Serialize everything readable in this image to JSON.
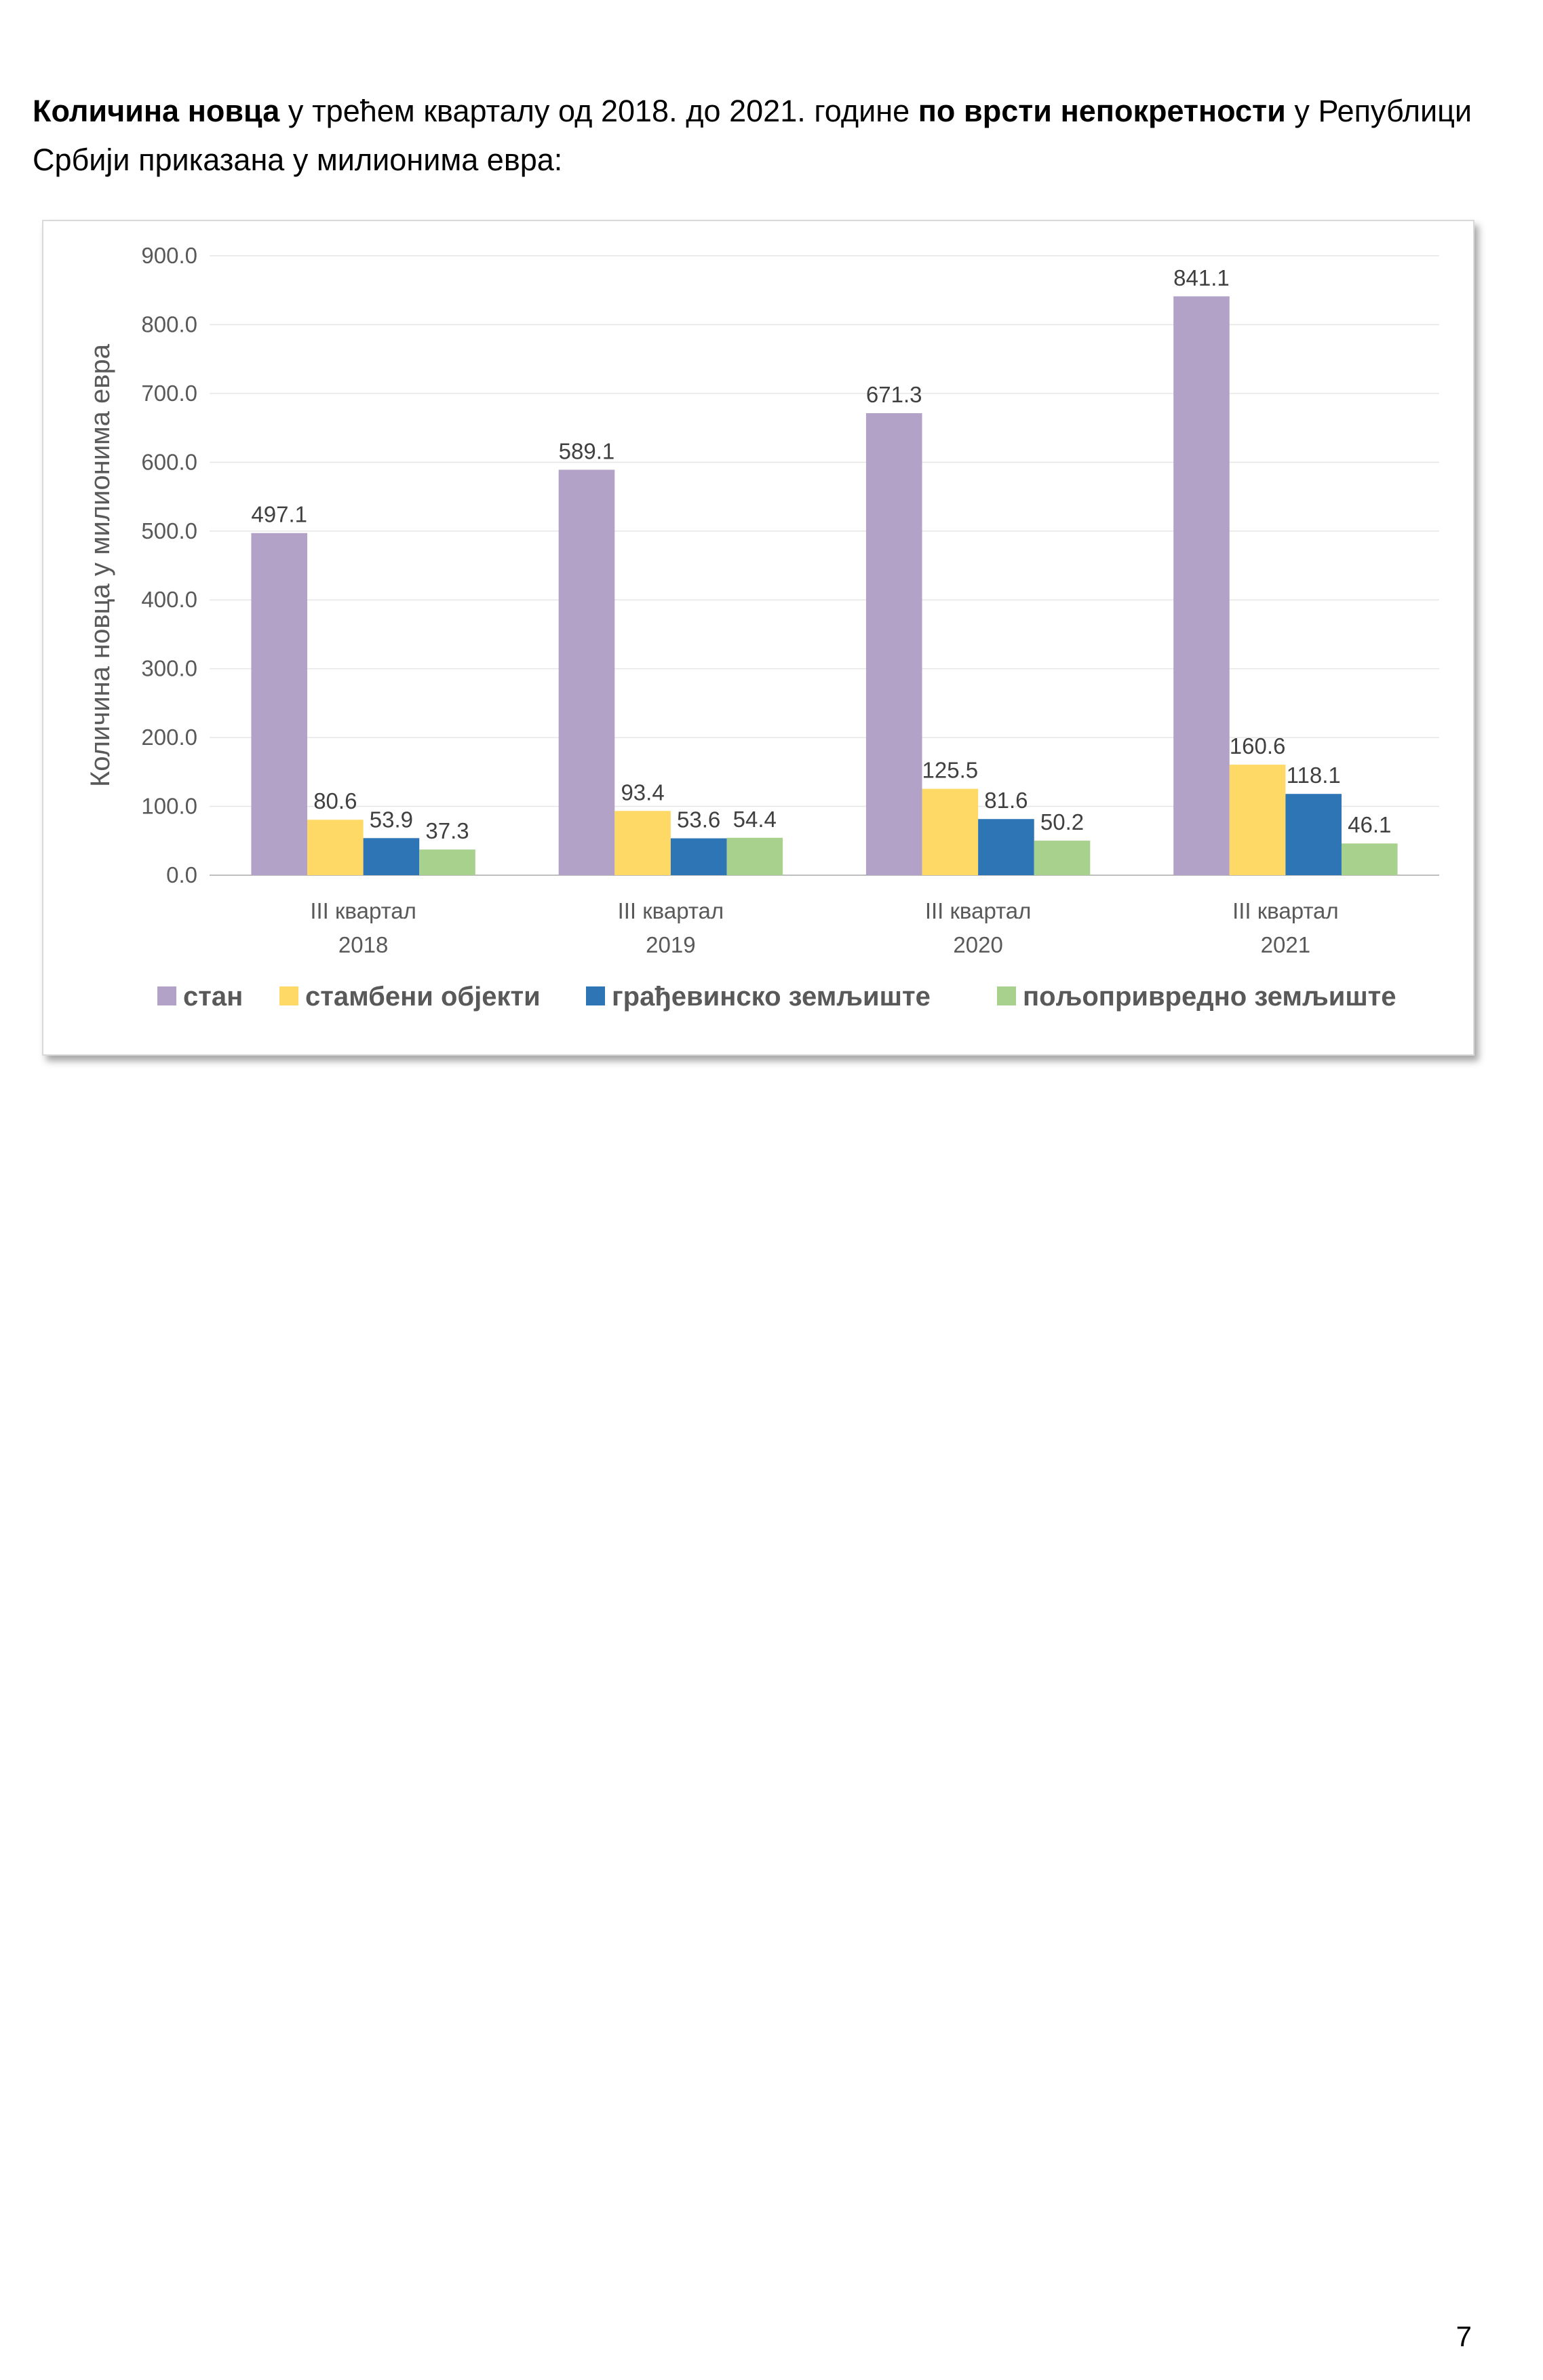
{
  "intro": {
    "part1_bold": "Количина новца",
    "part2": " у трећем кварталу од 2018. до 2021. године ",
    "part3_bold": "по врсти непокретности",
    "part4": " у Републици Србији приказана у милионима евра:"
  },
  "page_number": "7",
  "chart_data": {
    "type": "bar",
    "categories": [
      [
        "III квартал",
        "2018"
      ],
      [
        "III квартал",
        "2019"
      ],
      [
        "III квартал",
        "2020"
      ],
      [
        "III квартал",
        "2021"
      ]
    ],
    "series": [
      {
        "name": "стан",
        "color": "#b3a2c7",
        "values": [
          497.1,
          589.1,
          671.3,
          841.1
        ]
      },
      {
        "name": "стамбени објекти",
        "color": "#ffd966",
        "values": [
          80.6,
          93.4,
          125.5,
          160.6
        ]
      },
      {
        "name": "грађевинско земљиште",
        "color": "#2e75b6",
        "values": [
          53.9,
          53.6,
          81.6,
          118.1
        ]
      },
      {
        "name": "пољопривредно земљиште",
        "color": "#a9d18e",
        "values": [
          37.3,
          54.4,
          50.2,
          46.1
        ]
      }
    ],
    "ylabel": "Количина новца у милионима евра",
    "ylim": [
      0,
      900
    ],
    "yticks": [
      "0.0",
      "100.0",
      "200.0",
      "300.0",
      "400.0",
      "500.0",
      "600.0",
      "700.0",
      "800.0",
      "900.0"
    ],
    "grid": true,
    "legend_position": "bottom"
  }
}
